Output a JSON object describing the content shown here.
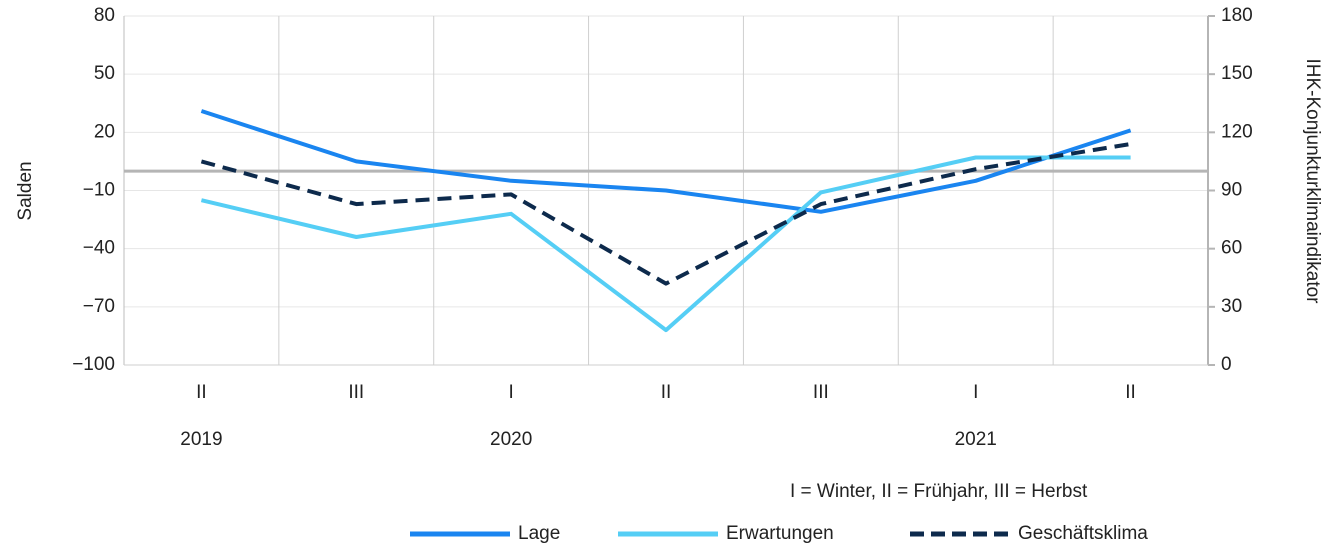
{
  "chart_data": {
    "type": "line",
    "ylabel": "Salden",
    "y2label": "IHK-Konjunkturklimaindikator",
    "ylim": [
      -100,
      80
    ],
    "y2lim": [
      0,
      180
    ],
    "yticks": [
      "80",
      "50",
      "20",
      "-10",
      "-40",
      "-70",
      "-100"
    ],
    "y2ticks": [
      "180",
      "150",
      "120",
      "90",
      "60",
      "30",
      "0"
    ],
    "x": [
      "II",
      "III",
      "I",
      "II",
      "III",
      "I",
      "II"
    ],
    "years": [
      {
        "label": "2019",
        "index": 0
      },
      {
        "label": "2020",
        "index": 2
      },
      {
        "label": "2021",
        "index": 5
      }
    ],
    "grid": true,
    "legend_position": "bottom",
    "note": "I = Winter, II = Frühjahr, III = Herbst",
    "series": [
      {
        "name": "Lage",
        "axis": "left",
        "color": "#1a85f0",
        "style": "solid",
        "values": [
          31,
          5,
          -5,
          -10,
          -21,
          -5,
          21
        ]
      },
      {
        "name": "Erwartungen",
        "axis": "left",
        "color": "#55cef5",
        "style": "solid",
        "values": [
          -15,
          -34,
          -22,
          -82,
          -11,
          7,
          7
        ]
      },
      {
        "name": "Geschäftsklima",
        "axis": "right",
        "color": "#0d2a4c",
        "style": "dashed",
        "values": [
          105,
          83,
          88,
          42,
          83,
          101,
          114
        ]
      }
    ]
  }
}
